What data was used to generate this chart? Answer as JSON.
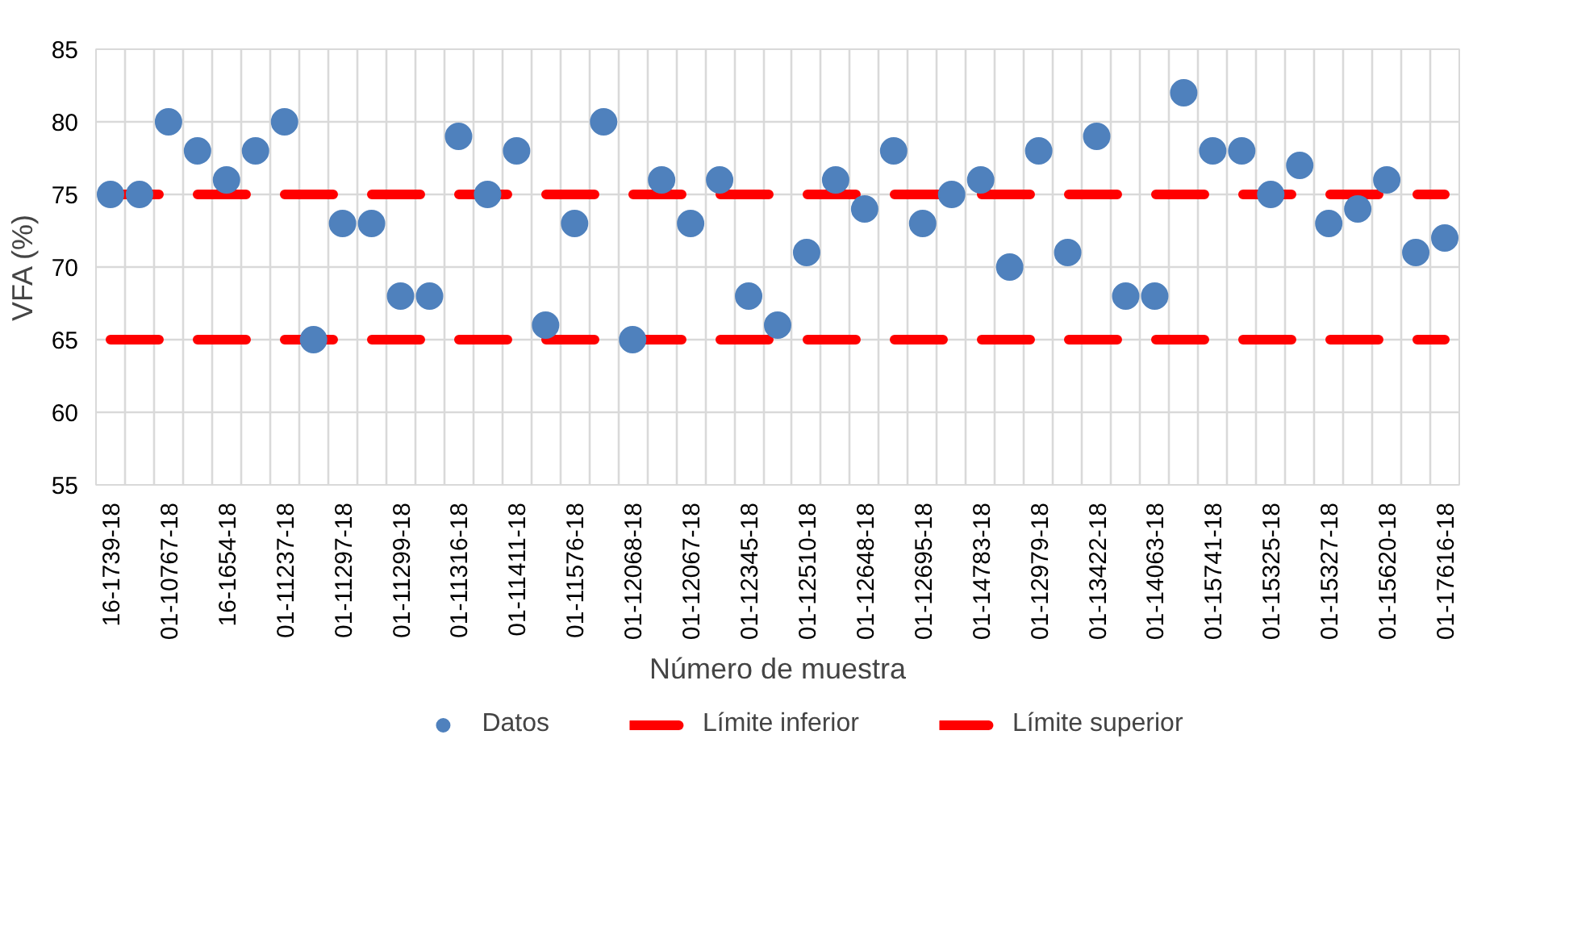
{
  "chart_data": {
    "type": "scatter",
    "xlabel": "Número de muestra",
    "ylabel": "VFA (%)",
    "categories": [
      "16-1739-18",
      null,
      "01-10767-18",
      null,
      "16-1654-18",
      null,
      "01-11237-18",
      null,
      "01-11297-18",
      null,
      "01-11299-18",
      null,
      "01-11316-18",
      null,
      "01-11411-18",
      null,
      "01-11576-18",
      null,
      "01-12068-18",
      null,
      "01-12067-18",
      null,
      "01-12345-18",
      null,
      "01-12510-18",
      null,
      "01-12648-18",
      null,
      "01-12695-18",
      null,
      "01-14783-18",
      null,
      "01-12979-18",
      null,
      "01-13422-18",
      null,
      "01-14063-18",
      null,
      "01-15741-18",
      null,
      "01-15325-18",
      null,
      "01-15327-18",
      null,
      "01-15620-18",
      null,
      "01-17616-18"
    ],
    "series": [
      {
        "name": "Datos",
        "marker": "circle",
        "color": "#4f81bd",
        "values": [
          75,
          75,
          80,
          78,
          76,
          78,
          80,
          65,
          73,
          73,
          68,
          68,
          79,
          75,
          78,
          66,
          73,
          80,
          65,
          76,
          73,
          76,
          68,
          66,
          71,
          76,
          74,
          78,
          73,
          75,
          76,
          70,
          78,
          71,
          79,
          68,
          68,
          82,
          78,
          78,
          75,
          77,
          73,
          74,
          76,
          71,
          72
        ]
      },
      {
        "name": "Límite inferior",
        "type": "line",
        "line_style": "dashed",
        "color": "#ff0000",
        "values": [
          65,
          65,
          65,
          65,
          65,
          65,
          65,
          65,
          65,
          65,
          65,
          65,
          65,
          65,
          65,
          65,
          65,
          65,
          65,
          65,
          65,
          65,
          65,
          65,
          65,
          65,
          65,
          65,
          65,
          65,
          65,
          65,
          65,
          65,
          65,
          65,
          65,
          65,
          65,
          65,
          65,
          65,
          65,
          65,
          65,
          65,
          65
        ]
      },
      {
        "name": "Límite superior",
        "type": "line",
        "line_style": "dashed",
        "color": "#ff0000",
        "values": [
          75,
          75,
          75,
          75,
          75,
          75,
          75,
          75,
          75,
          75,
          75,
          75,
          75,
          75,
          75,
          75,
          75,
          75,
          75,
          75,
          75,
          75,
          75,
          75,
          75,
          75,
          75,
          75,
          75,
          75,
          75,
          75,
          75,
          75,
          75,
          75,
          75,
          75,
          75,
          75,
          75,
          75,
          75,
          75,
          75,
          75,
          75
        ]
      }
    ],
    "ylim": [
      55,
      85
    ],
    "yticks": [
      55,
      60,
      65,
      70,
      75,
      80,
      85
    ],
    "grid": true,
    "legend": "bottom"
  }
}
